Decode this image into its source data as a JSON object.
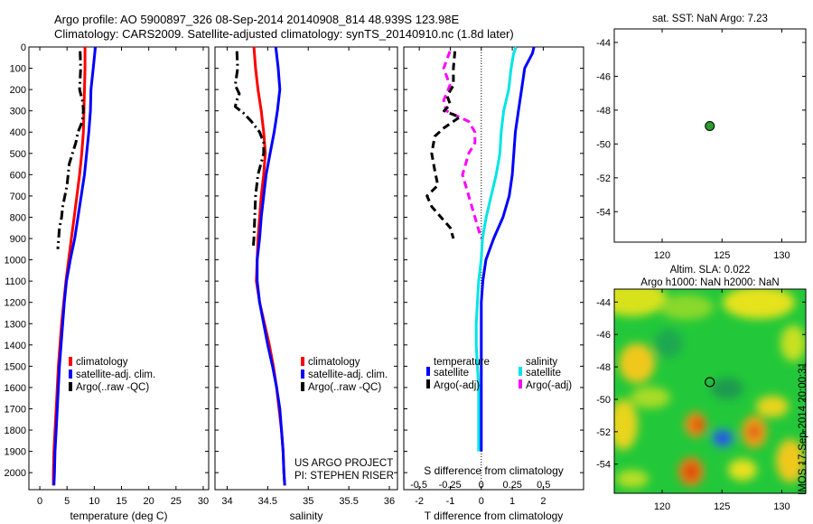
{
  "header": {
    "line1": "Argo profile: AO 5900897_326 08-Sep-2014 20140908_814 48.939S 123.98E",
    "line2": "Climatology: CARS2009. Satellite-adjusted climatology: synTS_20140910.nc (1.8d later)"
  },
  "depth_ticks": [
    0,
    100,
    200,
    300,
    400,
    500,
    600,
    700,
    800,
    900,
    1000,
    1100,
    1200,
    1300,
    1400,
    1500,
    1600,
    1700,
    1800,
    1900,
    2000
  ],
  "colors": {
    "climatology": "#ff0000",
    "satellite": "#0000ff",
    "argo": "#000000",
    "sat_salinity": "#00e5e5",
    "argo_salinity": "#ff00ff"
  },
  "panels": {
    "temperature": {
      "xlabel": "temperature (deg C)",
      "xticks": [
        "0",
        "5",
        "10",
        "15",
        "20",
        "25",
        "30"
      ]
    },
    "salinity": {
      "xlabel": "salinity",
      "xticks": [
        "34",
        "34.5",
        "35",
        "35.5",
        "36"
      ]
    },
    "difference": {
      "xlabel": "T difference from climatology",
      "xticks": [
        "-2",
        "-1",
        "0",
        "1",
        "2"
      ],
      "top_xlabel": "S difference from climatology",
      "top_xticks": [
        "-0.5",
        "-0.25",
        "0",
        "0.25",
        "0.5"
      ]
    }
  },
  "legend_ts": [
    "climatology",
    "satellite-adj. clim.",
    "Argo(..raw -QC)"
  ],
  "legend_diff": {
    "temperature_title": "temperature",
    "salinity_title": "salinity",
    "t_sat": "satellite",
    "t_argo": "Argo(-adj)",
    "s_sat": "satellite",
    "s_argo": "Argo(-adj)"
  },
  "credit": {
    "line1": "US ARGO PROJECT",
    "line2": "PI: STEPHEN RISER"
  },
  "map_sst": {
    "title": "sat. SST: NaN Argo: 7.23",
    "yticks": [
      "-44",
      "-46",
      "-48",
      "-50",
      "-52",
      "-54"
    ],
    "xticks": [
      "120",
      "125",
      "130"
    ]
  },
  "map_sla": {
    "title1": "Altim. SLA: 0.022",
    "title2": "Argo h1000: NaN h2000: NaN",
    "yticks": [
      "-44",
      "-46",
      "-48",
      "-50",
      "-52",
      "-54"
    ],
    "xticks": [
      "120",
      "125",
      "130"
    ]
  },
  "stamp": "IMOS 17-Sep-2014 20:00:31",
  "chart_data": [
    {
      "type": "line",
      "title": "",
      "xlabel": "temperature (deg C)",
      "ylabel": "depth",
      "xlim": [
        -2,
        31
      ],
      "ylim": [
        2080,
        0
      ],
      "series": [
        {
          "name": "climatology",
          "x": [
            8.3,
            8.3,
            8.2,
            8.1,
            8.0,
            7.7,
            7.3,
            6.8,
            6.3,
            5.8,
            5.3,
            4.8,
            4.4,
            4.0,
            3.7,
            3.4,
            3.2,
            3.0,
            2.8,
            2.6,
            2.5,
            2.5
          ],
          "depth": [
            0,
            100,
            200,
            300,
            400,
            500,
            600,
            700,
            800,
            900,
            1000,
            1100,
            1200,
            1300,
            1400,
            1500,
            1600,
            1700,
            1800,
            1900,
            2000,
            2060
          ]
        },
        {
          "name": "satellite-adj. clim.",
          "x": [
            10.2,
            9.8,
            9.4,
            9.3,
            9.0,
            8.6,
            8.2,
            7.6,
            7.0,
            6.4,
            5.6,
            4.9,
            4.5,
            4.2,
            3.9,
            3.6,
            3.4,
            3.2,
            3.0,
            2.8,
            2.7,
            2.6
          ],
          "depth": [
            0,
            100,
            200,
            300,
            400,
            500,
            600,
            700,
            800,
            900,
            1000,
            1100,
            1200,
            1300,
            1400,
            1500,
            1600,
            1700,
            1800,
            1900,
            2000,
            2060
          ]
        },
        {
          "name": "Argo(..raw -QC)",
          "x": [
            7.4,
            7.5,
            7.3,
            7.9,
            8.0,
            7.8,
            7.0,
            6.6,
            6.0,
            5.4,
            5.2,
            5.0,
            4.6,
            4.2,
            4.0,
            3.6,
            3.3
          ],
          "depth": [
            20,
            100,
            200,
            260,
            300,
            350,
            400,
            450,
            500,
            550,
            600,
            650,
            700,
            750,
            800,
            850,
            950
          ]
        }
      ]
    },
    {
      "type": "line",
      "title": "",
      "xlabel": "salinity",
      "ylabel": "depth",
      "xlim": [
        33.85,
        36.1
      ],
      "ylim": [
        2080,
        0
      ],
      "series": [
        {
          "name": "climatology",
          "x": [
            34.33,
            34.35,
            34.38,
            34.42,
            34.45,
            34.47,
            34.45,
            34.42,
            34.4,
            34.38,
            34.37,
            34.36,
            34.4,
            34.46,
            34.52,
            34.57,
            34.61,
            34.64,
            34.67,
            34.69,
            34.7,
            34.71
          ],
          "depth": [
            0,
            100,
            200,
            300,
            400,
            500,
            600,
            700,
            800,
            900,
            1000,
            1100,
            1200,
            1300,
            1400,
            1500,
            1600,
            1700,
            1800,
            1900,
            2000,
            2060
          ]
        },
        {
          "name": "satellite-adj. clim.",
          "x": [
            34.6,
            34.63,
            34.65,
            34.62,
            34.58,
            34.53,
            34.48,
            34.45,
            34.42,
            34.4,
            34.37,
            34.37,
            34.4,
            34.45,
            34.5,
            34.56,
            34.61,
            34.65,
            34.67,
            34.69,
            34.7,
            34.71
          ],
          "depth": [
            0,
            100,
            200,
            300,
            400,
            500,
            600,
            700,
            800,
            900,
            1000,
            1100,
            1200,
            1300,
            1400,
            1500,
            1600,
            1700,
            1800,
            1900,
            2000,
            2060
          ]
        },
        {
          "name": "Argo(..raw -QC)",
          "x": [
            34.12,
            34.13,
            34.1,
            34.15,
            34.12,
            34.1,
            34.2,
            34.3,
            34.4,
            34.45,
            34.45,
            34.38,
            34.35,
            34.34,
            34.33,
            34.32
          ],
          "depth": [
            20,
            100,
            180,
            220,
            250,
            280,
            310,
            350,
            400,
            450,
            500,
            600,
            700,
            800,
            900,
            950
          ]
        }
      ]
    },
    {
      "type": "line",
      "title": "",
      "xlabel": "T difference from climatology",
      "ylabel": "depth",
      "xlim": [
        -2.5,
        3.3
      ],
      "ylim": [
        2080,
        0
      ],
      "series": [
        {
          "name": "satellite",
          "x": [
            1.7,
            1.65,
            1.4,
            1.3,
            1.2,
            1.1,
            1.05,
            1.0,
            0.9,
            0.7,
            0.4,
            0.15,
            0.05,
            0.0,
            0.0,
            0.0,
            0.0,
            0.0,
            0.0,
            0.0,
            0.0
          ],
          "depth": [
            0,
            30,
            100,
            200,
            300,
            400,
            500,
            600,
            700,
            800,
            900,
            1000,
            1100,
            1200,
            1300,
            1400,
            1500,
            1600,
            1700,
            1800,
            1900
          ]
        },
        {
          "name": "Argo(-adj)",
          "x": [
            -0.85,
            -0.9,
            -0.9,
            -1.1,
            -1.0,
            -1.2,
            -0.7,
            -1.2,
            -1.5,
            -1.6,
            -1.5,
            -1.4,
            -1.75,
            -1.6,
            -1.3,
            -1.0,
            -0.9
          ],
          "depth": [
            20,
            100,
            180,
            230,
            270,
            300,
            330,
            380,
            420,
            500,
            580,
            650,
            700,
            750,
            800,
            850,
            900
          ]
        }
      ],
      "s_series": [
        {
          "name": "satellite",
          "x": [
            0.28,
            0.26,
            0.24,
            0.22,
            0.18,
            0.16,
            0.15,
            0.12,
            0.08,
            0.04,
            0.01,
            0.0,
            -0.02,
            -0.03,
            -0.04,
            -0.04,
            -0.03,
            -0.02,
            -0.02,
            -0.02,
            -0.02
          ],
          "depth": [
            0,
            30,
            100,
            200,
            300,
            400,
            500,
            600,
            700,
            800,
            900,
            1000,
            1100,
            1200,
            1300,
            1400,
            1500,
            1600,
            1700,
            1800,
            1900
          ]
        },
        {
          "name": "Argo(-adj)",
          "x": [
            -0.25,
            -0.3,
            -0.25,
            -0.3,
            -0.28,
            -0.1,
            -0.05,
            -0.05,
            -0.1,
            -0.15,
            -0.1,
            -0.05,
            0.0
          ],
          "depth": [
            20,
            100,
            180,
            250,
            300,
            350,
            400,
            450,
            500,
            600,
            700,
            800,
            900
          ]
        }
      ],
      "s_xlim": [
        -0.62,
        0.82
      ]
    },
    {
      "type": "scatter",
      "title": "sat. SST: NaN Argo: 7.23",
      "xlim": [
        116,
        132
      ],
      "ylim": [
        -55.8,
        -43.2
      ],
      "points": [
        {
          "x": 123.98,
          "y": -48.939
        }
      ]
    },
    {
      "type": "heatmap",
      "title": "Altim. SLA: 0.022",
      "xlim": [
        116,
        132
      ],
      "ylim": [
        -55.8,
        -43.2
      ],
      "marker": {
        "x": 123.98,
        "y": -48.939
      }
    }
  ]
}
